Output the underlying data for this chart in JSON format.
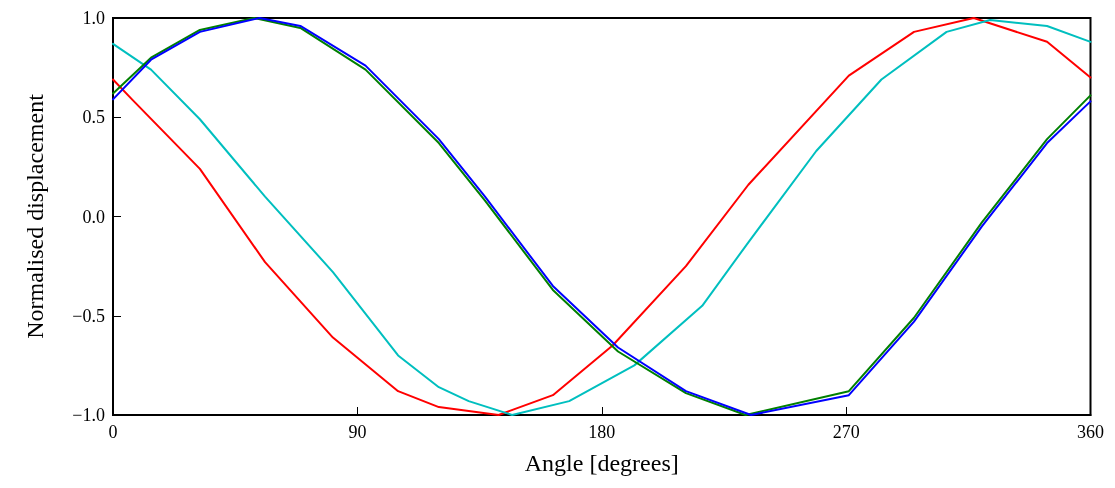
{
  "chart_data": {
    "type": "line",
    "xlabel": "Angle [degrees]",
    "ylabel": "Normalised displacement",
    "xlim": [
      0,
      360
    ],
    "xticks": [
      0,
      90,
      180,
      270,
      360
    ],
    "ylim": [
      -1,
      1
    ],
    "yticks": [
      {
        "value": -1,
        "label": "−1.0"
      },
      {
        "value": -0.5,
        "label": "−0.5"
      },
      {
        "value": 0,
        "label": "0.0"
      },
      {
        "value": 0.5,
        "label": "0.5"
      },
      {
        "value": 1,
        "label": "1.0"
      }
    ],
    "marker": "none",
    "line_style": "solid",
    "series": [
      {
        "color": "#ff0000",
        "x": [
          0,
          7,
          32,
          56,
          81,
          105,
          120,
          142,
          162,
          184,
          211,
          234,
          271,
          295,
          317,
          344,
          360
        ],
        "values": [
          0.69,
          0.59,
          0.24,
          -0.23,
          -0.61,
          -0.88,
          -0.96,
          -1,
          -0.9,
          -0.65,
          -0.25,
          0.16,
          0.71,
          0.93,
          1,
          0.88,
          0.7
        ]
      },
      {
        "color": "#00bfbf",
        "x": [
          0,
          14,
          32,
          56,
          81,
          105,
          120,
          131,
          147,
          168,
          192,
          217,
          234,
          259,
          283,
          307,
          323,
          344,
          360
        ],
        "values": [
          0.87,
          0.74,
          0.49,
          0.1,
          -0.28,
          -0.7,
          -0.86,
          -0.93,
          -1,
          -0.93,
          -0.75,
          -0.45,
          -0.13,
          0.33,
          0.69,
          0.93,
          0.99,
          0.96,
          0.88
        ]
      },
      {
        "color": "#008000",
        "x": [
          0,
          14,
          32,
          52,
          69,
          93,
          120,
          137,
          162,
          186,
          211,
          233,
          271,
          295,
          320,
          344,
          360
        ],
        "values": [
          0.62,
          0.8,
          0.94,
          1,
          0.95,
          0.74,
          0.37,
          0.08,
          -0.37,
          -0.68,
          -0.89,
          -1,
          -0.88,
          -0.51,
          -0.03,
          0.39,
          0.61
        ]
      },
      {
        "color": "#0000ff",
        "x": [
          0,
          14,
          32,
          54,
          69,
          93,
          120,
          137,
          162,
          186,
          211,
          235,
          271,
          295,
          320,
          344,
          360
        ],
        "values": [
          0.59,
          0.79,
          0.93,
          1,
          0.96,
          0.76,
          0.39,
          0.1,
          -0.35,
          -0.66,
          -0.88,
          -1,
          -0.9,
          -0.53,
          -0.05,
          0.37,
          0.58
        ]
      }
    ]
  }
}
